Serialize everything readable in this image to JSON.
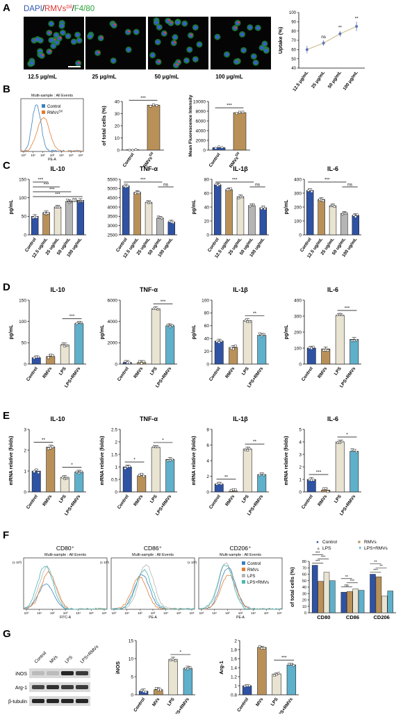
{
  "colors": {
    "control": "#2e52a4",
    "rmvs": "#b99158",
    "lps": "#e9e3d2",
    "lps_rmvs": "#5fb0ca",
    "flow_control": "#3b7fbd",
    "flow_rmvs": "#e37b2f",
    "flow_lps": "#b5b5b5",
    "flow_lps_rmvs": "#48b7b0",
    "uptake": "#d9c79e"
  },
  "panel_labels": [
    "A",
    "B",
    "C",
    "D",
    "E",
    "F",
    "G"
  ],
  "panelA": {
    "legend": {
      "dapi": "DAPI",
      "rmvs": "RMVs",
      "sup": "Dil",
      "f480": "F4/80",
      "sep": "/"
    },
    "captions": [
      "12.5 μg/mL",
      "25 μg/mL",
      "50 μg/mL",
      "100 μg/mL"
    ],
    "chart_data": {
      "type": "line",
      "ylabel": "Uptake (%)",
      "categories": [
        "12.5 μg/mL",
        "25 μg/mL",
        "50 μg/mL",
        "100 μg/mL"
      ],
      "values": [
        60,
        67,
        77,
        85
      ],
      "errors": [
        4,
        3,
        3,
        5
      ],
      "ylim": [
        40,
        100
      ],
      "yticks": [
        40,
        50,
        60,
        70,
        80,
        90,
        100
      ],
      "significance": [
        "",
        "ns",
        "**",
        "**"
      ]
    }
  },
  "panelB": {
    "histogram": {
      "title": "Multi-sample : All Events",
      "xlabel": "PE-A",
      "xticks": [
        "10⁰",
        "10¹",
        "10²",
        "10³",
        "10⁴",
        "10⁵",
        "10⁶"
      ],
      "legend": [
        {
          "name": "Control",
          "color_key": "flow_control"
        },
        {
          "name": "RMVs",
          "sup": "Dil",
          "color_key": "flow_rmvs"
        }
      ]
    },
    "chart_data": [
      {
        "type": "bar",
        "ylabel": "of total cells (%)",
        "categories": [
          "Control",
          "RMVs"
        ],
        "cat_sup": [
          "",
          "Dil"
        ],
        "values": [
          0.3,
          37
        ],
        "ylim": [
          0,
          40
        ],
        "yticks": [
          0,
          10,
          20,
          30,
          40
        ],
        "significance": [
          {
            "from": 0,
            "to": 1,
            "label": "***"
          }
        ]
      },
      {
        "type": "bar",
        "ylabel": "Mean Fluorescence Intensity",
        "categories": [
          "Control",
          "RMVs"
        ],
        "cat_sup": [
          "",
          "Dil"
        ],
        "values": [
          500,
          7700
        ],
        "ylim": [
          0,
          10000
        ],
        "yticks": [
          0,
          2000,
          4000,
          6000,
          8000,
          10000
        ],
        "significance": [
          {
            "from": 0,
            "to": 1,
            "label": "***"
          }
        ]
      }
    ]
  },
  "panelC": {
    "categories": [
      "Control",
      "12.5 ug/mL",
      "25 ug/mL",
      "50 ug/mL",
      "100 ug/mL"
    ],
    "colors": [
      "control",
      "rmvs",
      "lps",
      "flow_lps",
      "control"
    ],
    "chart_data": [
      {
        "type": "bar",
        "title": "IL-10",
        "ylabel": "pg/mL",
        "values": [
          50,
          60,
          75,
          90,
          93
        ],
        "ylim": [
          0,
          150
        ],
        "yticks": [
          0,
          50,
          100,
          150
        ],
        "significance": [
          {
            "from": 0,
            "to": 1,
            "label": "***"
          },
          {
            "from": 0,
            "to": 2,
            "label": "***"
          },
          {
            "from": 0,
            "to": 3,
            "label": "***"
          },
          {
            "from": 0,
            "to": 4,
            "label": "***"
          },
          {
            "from": 3,
            "to": 4,
            "label": "ns"
          }
        ]
      },
      {
        "type": "bar",
        "title": "TNF-α",
        "ylabel": "",
        "values": [
          5150,
          4800,
          4250,
          3400,
          3200
        ],
        "ylim": [
          2500,
          5500
        ],
        "yticks": [
          2500,
          3000,
          3500,
          4000,
          4500,
          5000,
          5500
        ],
        "significance": [
          {
            "from": 0,
            "to": 3,
            "label": "***"
          },
          {
            "from": 3,
            "to": 4,
            "label": "ns"
          }
        ]
      },
      {
        "type": "bar",
        "title": "IL-1β",
        "ylabel": "pg/mL",
        "values": [
          72,
          65,
          55,
          42,
          39
        ],
        "ylim": [
          0,
          80
        ],
        "yticks": [
          0,
          20,
          40,
          60,
          80
        ],
        "significance": [
          {
            "from": 0,
            "to": 3,
            "label": "***"
          },
          {
            "from": 3,
            "to": 4,
            "label": "ns"
          }
        ]
      },
      {
        "type": "bar",
        "title": "IL-6",
        "ylabel": "pg/mL",
        "values": [
          320,
          255,
          210,
          155,
          140
        ],
        "ylim": [
          0,
          400
        ],
        "yticks": [
          0,
          100,
          200,
          300,
          400
        ],
        "significance": [
          {
            "from": 0,
            "to": 3,
            "label": "***"
          },
          {
            "from": 3,
            "to": 4,
            "label": "ns"
          }
        ]
      }
    ]
  },
  "panelD": {
    "categories": [
      "Control",
      "RMVs",
      "LPS",
      "LPS+RMVs"
    ],
    "chart_data": [
      {
        "type": "bar",
        "title": "IL-10",
        "ylabel": "pg/mL",
        "values": [
          15,
          18,
          45,
          95
        ],
        "ylim": [
          0,
          150
        ],
        "yticks": [
          0,
          50,
          100,
          150
        ],
        "significance": [
          {
            "from": 2,
            "to": 3,
            "label": "***"
          }
        ]
      },
      {
        "type": "bar",
        "title": "TNF-α",
        "ylabel": "pg/mL",
        "values": [
          150,
          150,
          5200,
          3600
        ],
        "ylim": [
          0,
          6000
        ],
        "yticks": [
          0,
          2000,
          4000,
          6000
        ],
        "significance": [
          {
            "from": 2,
            "to": 3,
            "label": "***"
          }
        ]
      },
      {
        "type": "bar",
        "title": "IL-1β",
        "ylabel": "pg/mL",
        "values": [
          36,
          26,
          68,
          45
        ],
        "ylim": [
          0,
          100
        ],
        "yticks": [
          0,
          20,
          40,
          60,
          80,
          100
        ],
        "significance": [
          {
            "from": 2,
            "to": 3,
            "label": "**"
          }
        ]
      },
      {
        "type": "bar",
        "title": "IL-6",
        "ylabel": "pg/mL",
        "values": [
          100,
          95,
          305,
          155
        ],
        "ylim": [
          0,
          400
        ],
        "yticks": [
          0,
          100,
          200,
          300,
          400
        ],
        "significance": [
          {
            "from": 2,
            "to": 3,
            "label": "***"
          }
        ]
      }
    ]
  },
  "panelE": {
    "categories": [
      "Control",
      "RMVs",
      "LPS",
      "LPS+RMVs"
    ],
    "chart_data": [
      {
        "type": "bar",
        "title": "IL-10",
        "ylabel": "mRNA relative (folds)",
        "values": [
          1.0,
          2.15,
          0.7,
          0.95
        ],
        "ylim": [
          0,
          3
        ],
        "yticks": [
          0,
          1,
          2,
          3
        ],
        "significance": [
          {
            "from": 0,
            "to": 1,
            "label": "**"
          },
          {
            "from": 2,
            "to": 3,
            "label": "*"
          }
        ]
      },
      {
        "type": "bar",
        "title": "TNF-α",
        "ylabel": "mRNA relative (folds)",
        "values": [
          1.0,
          0.65,
          1.78,
          1.3
        ],
        "ylim": [
          0,
          2.5
        ],
        "yticks": [
          0,
          0.5,
          1,
          1.5,
          2,
          2.5
        ],
        "significance": [
          {
            "from": 0,
            "to": 1,
            "label": "*"
          },
          {
            "from": 2,
            "to": 3,
            "label": "*"
          }
        ]
      },
      {
        "type": "bar",
        "title": "IL-1β",
        "ylabel": "mRNA relative (folds)",
        "values": [
          1.0,
          0.1,
          5.5,
          2.2
        ],
        "ylim": [
          0,
          8
        ],
        "yticks": [
          0,
          2,
          4,
          6,
          8
        ],
        "significance": [
          {
            "from": 0,
            "to": 1,
            "label": "**"
          },
          {
            "from": 2,
            "to": 3,
            "label": "**"
          }
        ]
      },
      {
        "type": "bar",
        "title": "IL-6",
        "ylabel": "mRNA relative (folds)",
        "values": [
          1.0,
          0.15,
          4.0,
          3.25
        ],
        "ylim": [
          0,
          5
        ],
        "yticks": [
          0,
          1,
          2,
          3,
          4,
          5
        ],
        "significance": [
          {
            "from": 0,
            "to": 1,
            "label": "***"
          },
          {
            "from": 2,
            "to": 3,
            "label": "*"
          }
        ]
      }
    ]
  },
  "panelF": {
    "histograms": [
      {
        "title": "CD80⁺",
        "subtitle": "Multi-sample : All Events",
        "xlabel": "FITC-A"
      },
      {
        "title": "CD86⁺",
        "subtitle": "Multi-sample : All Events",
        "xlabel": "PE-A"
      },
      {
        "title": "CD206⁺",
        "subtitle": "Multi-sample : All Events",
        "xlabel": "PE-A"
      }
    ],
    "hist_legend": [
      "Control",
      "RMVs",
      "LPS",
      "LPS+RMVs"
    ],
    "hist_ymark": "(x 10³)",
    "xticks": [
      "10⁰",
      "10¹",
      "10²",
      "10³",
      "10⁴",
      "10⁵",
      "10⁶"
    ],
    "chart_data": {
      "type": "bar",
      "ylabel": "of total cells (%)",
      "categories": [
        "CD80",
        "CD86",
        "CD206"
      ],
      "series": [
        {
          "name": "Control",
          "values": [
            74,
            32,
            60
          ]
        },
        {
          "name": "RMVs",
          "values": [
            49,
            33,
            56
          ]
        },
        {
          "name": "LPS",
          "values": [
            63,
            37,
            26
          ]
        },
        {
          "name": "LPS+RMVs",
          "values": [
            50,
            35,
            34
          ]
        }
      ],
      "ylim": [
        0,
        80
      ],
      "yticks": [
        0,
        10,
        20,
        30,
        40,
        50,
        60,
        70,
        80
      ],
      "significance_labels": [
        "***",
        "***",
        "***",
        "ns",
        "***",
        "**",
        "***",
        "**",
        "**"
      ]
    }
  },
  "panelG": {
    "blot_columns": [
      "Control",
      "MVs",
      "LPS",
      "LPS+RMVs"
    ],
    "blot_rows": [
      "iNOS",
      "Arg-1",
      "β-tubulin"
    ],
    "categories": [
      "Control",
      "MVs",
      "LPS",
      "LPS+RMVs"
    ],
    "chart_data": [
      {
        "type": "bar",
        "ylabel": "iNOS",
        "values": [
          1.0,
          1.4,
          9.8,
          7.3
        ],
        "ylim": [
          0,
          15
        ],
        "yticks": [
          0,
          5,
          10,
          15
        ],
        "significance": [
          {
            "from": 2,
            "to": 3,
            "label": "*"
          }
        ]
      },
      {
        "type": "bar",
        "ylabel": "Arg-1",
        "values": [
          1.0,
          1.85,
          1.26,
          1.46
        ],
        "ylim": [
          0.8,
          2.0
        ],
        "yticks": [
          0.8,
          1.0,
          1.2,
          1.4,
          1.6,
          1.8,
          2.0
        ],
        "significance": [
          {
            "from": 2,
            "to": 3,
            "label": "***"
          }
        ]
      }
    ]
  }
}
